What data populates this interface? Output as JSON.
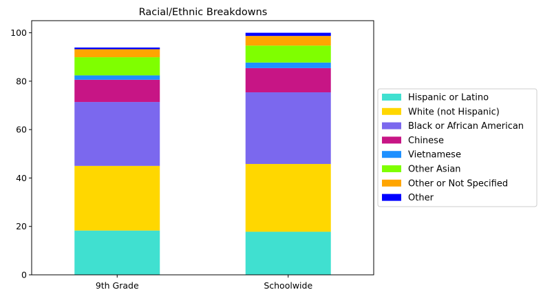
{
  "chart_data": {
    "type": "bar",
    "stacked": true,
    "title": "Racial/Ethnic Breakdowns",
    "xlabel": "",
    "ylabel": "",
    "categories": [
      "9th Grade",
      "Schoolwide"
    ],
    "ylim": [
      0,
      105
    ],
    "yticks": [
      0,
      20,
      40,
      60,
      80,
      100
    ],
    "grid": false,
    "legend_position": "center-right, outside plot",
    "series": [
      {
        "name": "Hispanic or Latino",
        "color": "#40e0d0",
        "values": [
          18.3,
          17.8
        ]
      },
      {
        "name": "White (not Hispanic)",
        "color": "#ffd700",
        "values": [
          26.7,
          28.0
        ]
      },
      {
        "name": "Black or African American",
        "color": "#7b68ee",
        "values": [
          26.4,
          29.6
        ]
      },
      {
        "name": "Chinese",
        "color": "#c71585",
        "values": [
          9.2,
          10.0
        ]
      },
      {
        "name": "Vietnamese",
        "color": "#1e90ff",
        "values": [
          1.8,
          2.3
        ]
      },
      {
        "name": "Other Asian",
        "color": "#7fff00",
        "values": [
          7.5,
          7.0
        ]
      },
      {
        "name": "Other or Not Specified",
        "color": "#ffa500",
        "values": [
          3.3,
          4.0
        ]
      },
      {
        "name": "Other",
        "color": "#0000ff",
        "values": [
          0.7,
          1.3
        ]
      }
    ]
  }
}
